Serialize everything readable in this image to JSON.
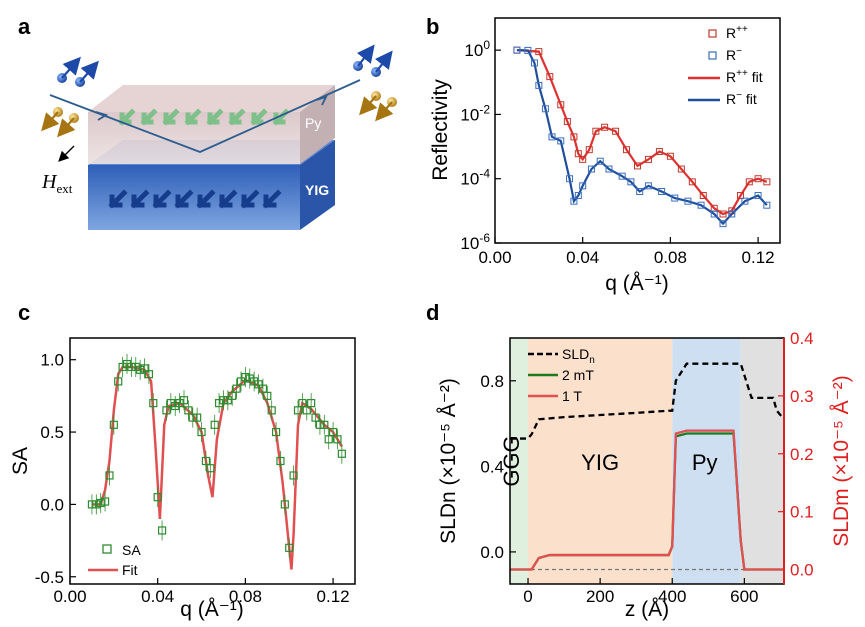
{
  "panels": {
    "a": "a",
    "b": "b",
    "c": "c",
    "d": "d"
  },
  "schematic": {
    "layer_top": "Py",
    "layer_bottom": "YIG",
    "field_label": "H",
    "field_sub": "ext"
  },
  "chart_data": [
    {
      "type": "scatter",
      "panel": "b",
      "xlabel": "q (Å⁻¹)",
      "ylabel": "Reflectivity",
      "xlim": [
        0,
        0.13
      ],
      "ylim": [
        1e-06,
        10
      ],
      "yscale": "log",
      "xticks": [
        "0.00",
        "0.04",
        "0.08",
        "0.12"
      ],
      "yticks": [
        {
          "v": 1,
          "b": "10",
          "e": "0"
        },
        {
          "v": 0.01,
          "b": "10",
          "e": "-2"
        },
        {
          "v": 0.0001,
          "b": "10",
          "e": "-4"
        },
        {
          "v": 1e-06,
          "b": "10",
          "e": "-6"
        }
      ],
      "legend_position": "top-right",
      "legend": [
        {
          "label": "R",
          "sup": "++",
          "kind": "marker",
          "color": "#c0392b"
        },
        {
          "label": "R",
          "sup": "−",
          "kind": "marker",
          "color": "#3a6fbf"
        },
        {
          "label": "R",
          "sup": "++",
          "suffix": " fit",
          "kind": "line",
          "color": "#e03030"
        },
        {
          "label": "R",
          "sup": "−",
          "suffix": " fit",
          "kind": "line",
          "color": "#1f4e9c"
        }
      ],
      "series": [
        {
          "key": "Rpp",
          "color": "#c0392b",
          "x": [
            0.01,
            0.02,
            0.025,
            0.03,
            0.033,
            0.036,
            0.038,
            0.04,
            0.043,
            0.046,
            0.05,
            0.055,
            0.06,
            0.065,
            0.07,
            0.075,
            0.08,
            0.085,
            0.09,
            0.095,
            0.1,
            0.104,
            0.108,
            0.112,
            0.116,
            0.12,
            0.124
          ],
          "y": [
            1.0,
            0.9,
            0.15,
            0.02,
            0.006,
            0.002,
            0.0006,
            0.0004,
            0.0008,
            0.003,
            0.004,
            0.003,
            0.0008,
            0.00025,
            0.0004,
            0.0007,
            0.0005,
            0.0002,
            8e-05,
            3e-05,
            1.2e-05,
            8e-06,
            1e-05,
            3e-05,
            8e-05,
            0.0001,
            8e-05
          ]
        },
        {
          "key": "Rm",
          "color": "#3a6fbf",
          "x": [
            0.01,
            0.015,
            0.018,
            0.02,
            0.023,
            0.026,
            0.03,
            0.034,
            0.036,
            0.038,
            0.04,
            0.044,
            0.048,
            0.052,
            0.058,
            0.062,
            0.066,
            0.07,
            0.076,
            0.082,
            0.088,
            0.094,
            0.1,
            0.104,
            0.108,
            0.114,
            0.12,
            0.124
          ],
          "y": [
            1.0,
            0.98,
            0.4,
            0.08,
            0.015,
            0.002,
            0.0015,
            0.0001,
            2e-05,
            3e-05,
            6e-05,
            0.0002,
            0.00035,
            0.0002,
            0.00012,
            8e-05,
            4e-05,
            6e-05,
            4e-05,
            2.5e-05,
            2e-05,
            1.5e-05,
            8e-06,
            4e-06,
            8e-06,
            2e-05,
            3e-05,
            1.5e-05
          ]
        }
      ]
    },
    {
      "type": "scatter",
      "panel": "c",
      "xlabel": "q (Å⁻¹)",
      "ylabel": "SA",
      "xlim": [
        0,
        0.13
      ],
      "ylim": [
        -0.55,
        1.15
      ],
      "xticks": [
        "0.00",
        "0.04",
        "0.08",
        "0.12"
      ],
      "yticks": [
        "-0.5",
        "0.0",
        "0.5",
        "1.0"
      ],
      "legend_position": "bottom-left",
      "legend": [
        {
          "label": "SA",
          "kind": "marker",
          "color": "#2e8b2e"
        },
        {
          "label": "Fit",
          "kind": "line",
          "color": "#e05050"
        }
      ],
      "series": [
        {
          "key": "SA",
          "color": "#2e8b2e",
          "x": [
            0.01,
            0.012,
            0.014,
            0.016,
            0.018,
            0.02,
            0.022,
            0.024,
            0.026,
            0.028,
            0.03,
            0.032,
            0.034,
            0.036,
            0.038,
            0.04,
            0.042,
            0.044,
            0.046,
            0.048,
            0.05,
            0.052,
            0.054,
            0.056,
            0.058,
            0.06,
            0.062,
            0.064,
            0.066,
            0.068,
            0.07,
            0.072,
            0.074,
            0.076,
            0.078,
            0.08,
            0.082,
            0.084,
            0.086,
            0.088,
            0.09,
            0.092,
            0.094,
            0.096,
            0.098,
            0.1,
            0.102,
            0.104,
            0.106,
            0.108,
            0.11,
            0.112,
            0.114,
            0.116,
            0.118,
            0.12,
            0.122,
            0.124
          ],
          "y": [
            0.0,
            0.0,
            0.01,
            0.02,
            0.2,
            0.55,
            0.85,
            0.95,
            0.97,
            0.95,
            0.95,
            0.93,
            0.94,
            0.9,
            0.7,
            0.05,
            -0.18,
            0.65,
            0.7,
            0.68,
            0.7,
            0.72,
            0.65,
            0.6,
            0.6,
            0.5,
            0.3,
            0.25,
            0.55,
            0.7,
            0.72,
            0.72,
            0.75,
            0.8,
            0.85,
            0.88,
            0.87,
            0.85,
            0.83,
            0.8,
            0.75,
            0.65,
            0.5,
            0.3,
            0.0,
            -0.3,
            0.2,
            0.65,
            0.7,
            0.65,
            0.7,
            0.6,
            0.55,
            0.55,
            0.45,
            0.5,
            0.45,
            0.35
          ]
        },
        {
          "key": "Fit",
          "color": "#e05050",
          "x": [
            0.01,
            0.014,
            0.016,
            0.018,
            0.02,
            0.022,
            0.024,
            0.028,
            0.034,
            0.037,
            0.039,
            0.041,
            0.043,
            0.045,
            0.05,
            0.056,
            0.06,
            0.063,
            0.065,
            0.067,
            0.07,
            0.074,
            0.08,
            0.086,
            0.09,
            0.094,
            0.097,
            0.1,
            0.101,
            0.102,
            0.104,
            0.106,
            0.11,
            0.116,
            0.12,
            0.124
          ],
          "y": [
            0.0,
            0.0,
            0.1,
            0.3,
            0.65,
            0.9,
            0.95,
            0.95,
            0.93,
            0.85,
            0.4,
            -0.1,
            0.55,
            0.68,
            0.7,
            0.62,
            0.5,
            0.2,
            0.05,
            0.45,
            0.7,
            0.78,
            0.86,
            0.82,
            0.7,
            0.5,
            0.15,
            -0.3,
            -0.45,
            -0.2,
            0.55,
            0.7,
            0.66,
            0.55,
            0.5,
            0.4
          ]
        }
      ]
    },
    {
      "type": "line",
      "panel": "d",
      "xlabel": "z (Å)",
      "ylabel": "SLDn (×10⁻⁵ Å⁻²)",
      "ylabel_right": "SLDm (×10⁻⁵ Å⁻²)",
      "xlim": [
        -50,
        710
      ],
      "ylim": [
        -0.15,
        1.0
      ],
      "ylim_right": [
        -0.025,
        0.4
      ],
      "xticks": [
        "0",
        "200",
        "400",
        "600"
      ],
      "yticks": [
        "0.0",
        "0.4",
        "0.8"
      ],
      "yticks_right": [
        "0.0",
        "0.1",
        "0.2",
        "0.3",
        "0.4"
      ],
      "legend_position": "top-left",
      "regions": [
        {
          "label": "GGG",
          "from": -50,
          "to": 0,
          "color": "#dff0df"
        },
        {
          "label": "YIG",
          "from": 0,
          "to": 400,
          "color": "#fbe0cc"
        },
        {
          "label": "Py",
          "from": 400,
          "to": 590,
          "color": "#cddff0"
        },
        {
          "label": "",
          "from": 590,
          "to": 710,
          "color": "#e0e0e0"
        }
      ],
      "legend": [
        {
          "label": "SLD",
          "sub": "n",
          "kind": "dashed",
          "color": "#000000"
        },
        {
          "label": "2 mT",
          "kind": "line",
          "color": "#1f7a1f"
        },
        {
          "label": "1 T",
          "kind": "line",
          "color": "#e05050"
        }
      ],
      "series": [
        {
          "key": "SLDn",
          "axis": "left",
          "dash": true,
          "color": "#000000",
          "x": [
            -50,
            0,
            10,
            30,
            100,
            200,
            300,
            390,
            400,
            410,
            440,
            500,
            580,
            590,
            620,
            680,
            690,
            710
          ],
          "y": [
            0.53,
            0.53,
            0.55,
            0.62,
            0.63,
            0.64,
            0.65,
            0.66,
            0.66,
            0.8,
            0.88,
            0.88,
            0.88,
            0.88,
            0.72,
            0.72,
            0.66,
            0.62
          ]
        },
        {
          "key": "2 mT",
          "axis": "right",
          "color": "#1f7a1f",
          "x": [
            -50,
            10,
            30,
            60,
            200,
            390,
            400,
            410,
            440,
            560,
            570,
            590,
            600,
            710
          ],
          "y": [
            0.0,
            0.0,
            0.02,
            0.025,
            0.025,
            0.025,
            0.04,
            0.23,
            0.235,
            0.235,
            0.235,
            0.05,
            0.0,
            0.0
          ]
        },
        {
          "key": "1 T",
          "axis": "right",
          "color": "#e05050",
          "x": [
            -50,
            10,
            30,
            60,
            200,
            390,
            400,
            410,
            440,
            560,
            570,
            590,
            600,
            710
          ],
          "y": [
            0.0,
            0.0,
            0.02,
            0.025,
            0.025,
            0.025,
            0.04,
            0.235,
            0.24,
            0.24,
            0.24,
            0.05,
            0.0,
            0.0
          ]
        }
      ],
      "zero_line": {
        "y": 0.0,
        "axis": "right",
        "color": "#777777"
      }
    }
  ]
}
